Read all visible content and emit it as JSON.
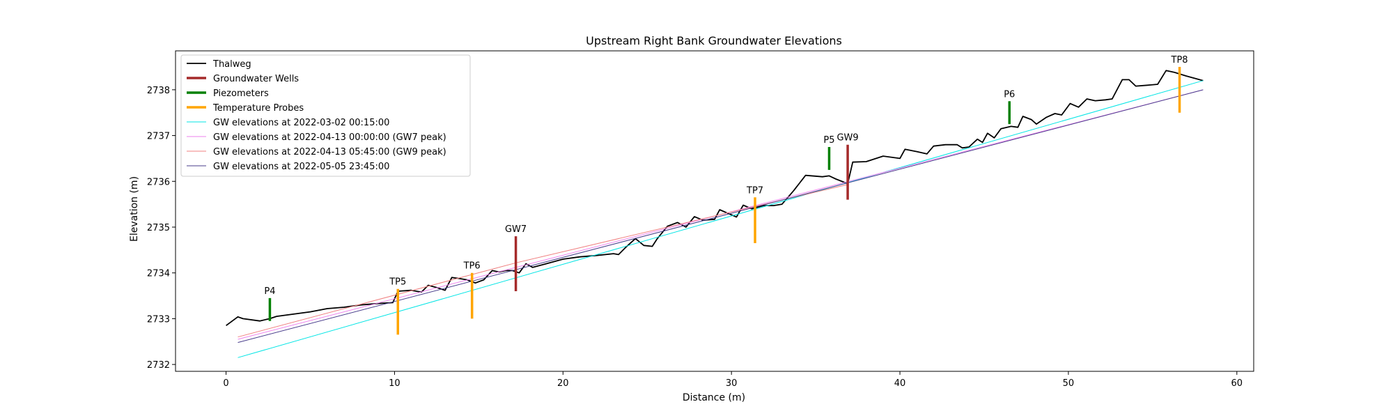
{
  "chart_data": {
    "type": "line",
    "title": "Upstream Right Bank Groundwater Elevations",
    "xlabel": "Distance (m)",
    "ylabel": "Elevation (m)",
    "xlim": [
      -3,
      61
    ],
    "ylim": [
      2731.85,
      2738.85
    ],
    "xticks": [
      0,
      10,
      20,
      30,
      40,
      50,
      60
    ],
    "yticks": [
      2732,
      2733,
      2734,
      2735,
      2736,
      2737,
      2738
    ],
    "grid": false,
    "legend_position": "top-left",
    "thalweg": {
      "name": "Thalweg",
      "color": "#000000",
      "x": [
        0,
        0.7,
        1,
        2,
        2.6,
        3,
        4,
        5,
        6,
        7,
        8,
        9,
        9.9,
        10.2,
        11,
        11.6,
        12,
        12.5,
        13,
        13.4,
        13.8,
        14.3,
        14.8,
        15.3,
        15.8,
        16.2,
        16.6,
        17,
        17.4,
        17.8,
        18.2,
        19,
        20,
        21,
        22,
        23,
        23.3,
        23.7,
        24.3,
        24.8,
        25.3,
        25.6,
        26.2,
        26.8,
        27.3,
        27.8,
        28.3,
        29,
        29.3,
        29.8,
        30.3,
        30.7,
        31.2,
        31.9,
        32.5,
        33,
        33.7,
        34.4,
        35.4,
        35.8,
        36.2,
        36.9,
        37.2,
        38,
        39,
        40,
        40.3,
        41,
        41.6,
        42,
        42.7,
        43.4,
        43.7,
        44.1,
        44.6,
        44.9,
        45.2,
        45.6,
        46,
        46.6,
        47,
        47.3,
        47.8,
        48.1,
        48.7,
        49.2,
        49.6,
        50.1,
        50.6,
        51.1,
        51.6,
        52.2,
        52.6,
        53.2,
        53.6,
        54,
        54.7,
        55.3,
        55.8,
        56.3,
        57,
        58
      ],
      "y": [
        2732.85,
        2733.04,
        2733.0,
        2732.95,
        2733.0,
        2733.05,
        2733.1,
        2733.15,
        2733.22,
        2733.25,
        2733.3,
        2733.33,
        2733.35,
        2733.6,
        2733.62,
        2733.58,
        2733.73,
        2733.68,
        2733.62,
        2733.9,
        2733.88,
        2733.85,
        2733.78,
        2733.85,
        2734.05,
        2734.02,
        2734.05,
        2734.05,
        2734.0,
        2734.2,
        2734.12,
        2734.2,
        2734.3,
        2734.35,
        2734.38,
        2734.42,
        2734.4,
        2734.55,
        2734.75,
        2734.6,
        2734.58,
        2734.75,
        2735.02,
        2735.1,
        2735.0,
        2735.23,
        2735.15,
        2735.17,
        2735.38,
        2735.3,
        2735.22,
        2735.48,
        2735.4,
        2735.47,
        2735.47,
        2735.5,
        2735.8,
        2736.13,
        2736.1,
        2736.12,
        2736.05,
        2735.95,
        2736.42,
        2736.43,
        2736.55,
        2736.5,
        2736.7,
        2736.65,
        2736.6,
        2736.77,
        2736.8,
        2736.8,
        2736.73,
        2736.75,
        2736.92,
        2736.85,
        2737.05,
        2736.95,
        2737.15,
        2737.2,
        2737.18,
        2737.42,
        2737.35,
        2737.25,
        2737.4,
        2737.48,
        2737.45,
        2737.7,
        2737.62,
        2737.8,
        2737.76,
        2737.78,
        2737.8,
        2738.22,
        2738.22,
        2738.08,
        2738.1,
        2738.12,
        2738.42,
        2738.38,
        2738.3,
        2738.2
      ]
    },
    "gw_series": [
      {
        "name": "GW elevations at 2022-03-02 00:15:00",
        "color": "#00e5e5",
        "x": [
          0.7,
          58
        ],
        "y": [
          2732.15,
          2738.2
        ]
      },
      {
        "name": "GW elevations at 2022-04-13 00:00:00 (GW7 peak)",
        "color": "#ee82ee",
        "x": [
          0.7,
          58
        ],
        "y": [
          2732.55,
          2738.0
        ]
      },
      {
        "name": "GW elevations at 2022-04-13 05:45:00 (GW9 peak)",
        "color": "#f08080",
        "x": [
          0.7,
          17.2,
          36.9
        ],
        "y": [
          2732.6,
          2734.22,
          2735.93
        ]
      },
      {
        "name": "GW elevations at 2022-05-05 23:45:00",
        "color": "#483d8b",
        "x": [
          0.7,
          58
        ],
        "y": [
          2732.48,
          2738.0
        ]
      }
    ],
    "instruments": [
      {
        "label": "P4",
        "kind": "piezometer",
        "x": 2.6,
        "y_bottom": 2732.95,
        "y_top": 2733.45
      },
      {
        "label": "TP5",
        "kind": "probe",
        "x": 10.2,
        "y_bottom": 2732.65,
        "y_top": 2733.65
      },
      {
        "label": "TP6",
        "kind": "probe",
        "x": 14.6,
        "y_bottom": 2733.0,
        "y_top": 2734.0
      },
      {
        "label": "GW7",
        "kind": "well",
        "x": 17.2,
        "y_bottom": 2733.6,
        "y_top": 2734.8
      },
      {
        "label": "TP7",
        "kind": "probe",
        "x": 31.4,
        "y_bottom": 2734.65,
        "y_top": 2735.65
      },
      {
        "label": "P5",
        "kind": "piezometer",
        "x": 35.8,
        "y_bottom": 2736.25,
        "y_top": 2736.75
      },
      {
        "label": "GW9",
        "kind": "well",
        "x": 36.9,
        "y_bottom": 2735.6,
        "y_top": 2736.8
      },
      {
        "label": "P6",
        "kind": "piezometer",
        "x": 46.5,
        "y_bottom": 2737.25,
        "y_top": 2737.75
      },
      {
        "label": "TP8",
        "kind": "probe",
        "x": 56.6,
        "y_bottom": 2737.5,
        "y_top": 2738.5
      }
    ],
    "instrument_styles": {
      "well": {
        "name": "Groundwater Wells",
        "color": "#a52a2a"
      },
      "piezometer": {
        "name": "Piezometers",
        "color": "#008000"
      },
      "probe": {
        "name": "Temperature Probes",
        "color": "#ffa500"
      }
    },
    "legend": [
      {
        "name": "Thalweg",
        "color": "#000000",
        "style": "line"
      },
      {
        "name": "Groundwater Wells",
        "color": "#a52a2a",
        "style": "thick"
      },
      {
        "name": "Piezometers",
        "color": "#008000",
        "style": "thick"
      },
      {
        "name": "Temperature Probes",
        "color": "#ffa500",
        "style": "thick"
      },
      {
        "name": "GW elevations at 2022-03-02 00:15:00",
        "color": "#00e5e5",
        "style": "thin"
      },
      {
        "name": "GW elevations at 2022-04-13 00:00:00 (GW7 peak)",
        "color": "#ee82ee",
        "style": "thin"
      },
      {
        "name": "GW elevations at 2022-04-13 05:45:00 (GW9 peak)",
        "color": "#f08080",
        "style": "thin"
      },
      {
        "name": "GW elevations at 2022-05-05 23:45:00",
        "color": "#483d8b",
        "style": "thin"
      }
    ]
  }
}
